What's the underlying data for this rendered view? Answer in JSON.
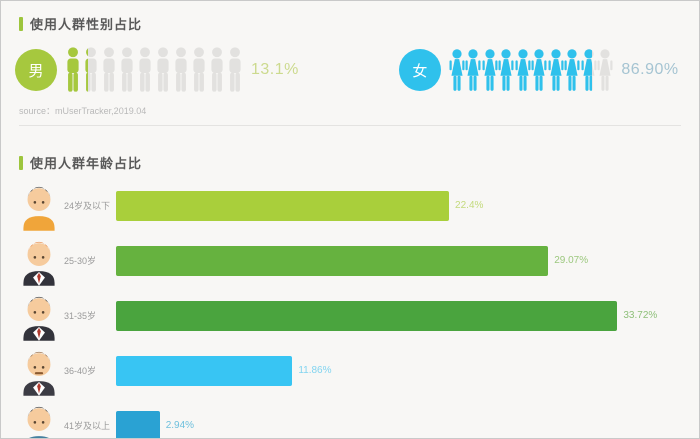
{
  "colors": {
    "accent_green": "#9dc53d",
    "male_green": "#a6c83e",
    "male_pct_color": "#ccda8e",
    "female_cyan": "#2fc1ec",
    "female_pct_color": "#a5c4d2",
    "icon_gray": "#e2e1df",
    "panel_bg": "#f8f7f5"
  },
  "gender_section": {
    "title": "使用人群性别占比",
    "male": {
      "label": "男",
      "percent": "13.1%",
      "value": 13.1,
      "icon_count": 10,
      "color": "#a6c83e"
    },
    "female": {
      "label": "女",
      "percent": "86.90%",
      "value": 86.9,
      "icon_count": 10,
      "color": "#2fc1ec"
    },
    "source": "source：mUserTracker,2019.04"
  },
  "age_section": {
    "title": "使用人群年龄占比",
    "axis_max": 38,
    "rows": [
      {
        "label": "24岁及以下",
        "percent": "22.4%",
        "value": 22.4,
        "bar_color": "#a9cf3b",
        "value_color": "#c3da7c",
        "avatar": {
          "hair": "#3b3b3b",
          "shirt": "#f0a53a",
          "suit": false,
          "mustache": false
        }
      },
      {
        "label": "25-30岁",
        "percent": "29.07%",
        "value": 29.07,
        "bar_color": "#66b23f",
        "value_color": "#9cc87e",
        "avatar": {
          "hair": "#e8833a",
          "shirt": "#33333b",
          "suit": true,
          "mustache": false
        }
      },
      {
        "label": "31-35岁",
        "percent": "33.72%",
        "value": 33.72,
        "bar_color": "#4aa43e",
        "value_color": "#8fc07a",
        "avatar": {
          "hair": "#2b2b2b",
          "shirt": "#33333b",
          "suit": true,
          "mustache": false
        }
      },
      {
        "label": "36-40岁",
        "percent": "11.86%",
        "value": 11.86,
        "bar_color": "#38c5f3",
        "value_color": "#82d4f0",
        "avatar": {
          "hair": "#8a5a30",
          "shirt": "#3c3c44",
          "suit": true,
          "mustache": true
        }
      },
      {
        "label": "41岁及以上",
        "percent": "2.94%",
        "value": 2.94,
        "bar_color": "#2aa2d3",
        "value_color": "#6fc0dd",
        "avatar": {
          "hair": "#2b2b2b",
          "shirt": "#44809f",
          "suit": false,
          "mustache": false
        }
      }
    ]
  },
  "chart_data": [
    {
      "type": "bar",
      "subtype": "pictogram",
      "title": "使用人群性别占比",
      "categories": [
        "男",
        "女"
      ],
      "values": [
        13.1,
        86.9
      ],
      "data_labels": [
        "13.1%",
        "86.90%"
      ],
      "unit": "%",
      "annotations": [
        "source：mUserTracker,2019.04"
      ],
      "legend_position": "none",
      "grid": false
    },
    {
      "type": "bar",
      "orientation": "horizontal",
      "title": "使用人群年龄占比",
      "categories": [
        "24岁及以下",
        "25-30岁",
        "31-35岁",
        "36-40岁",
        "41岁及以上"
      ],
      "values": [
        22.4,
        29.07,
        33.72,
        11.86,
        2.94
      ],
      "data_labels": [
        "22.4%",
        "29.07%",
        "33.72%",
        "11.86%",
        "2.94%"
      ],
      "unit": "%",
      "xlim": [
        0,
        38
      ],
      "grid": false,
      "legend_position": "none"
    }
  ]
}
